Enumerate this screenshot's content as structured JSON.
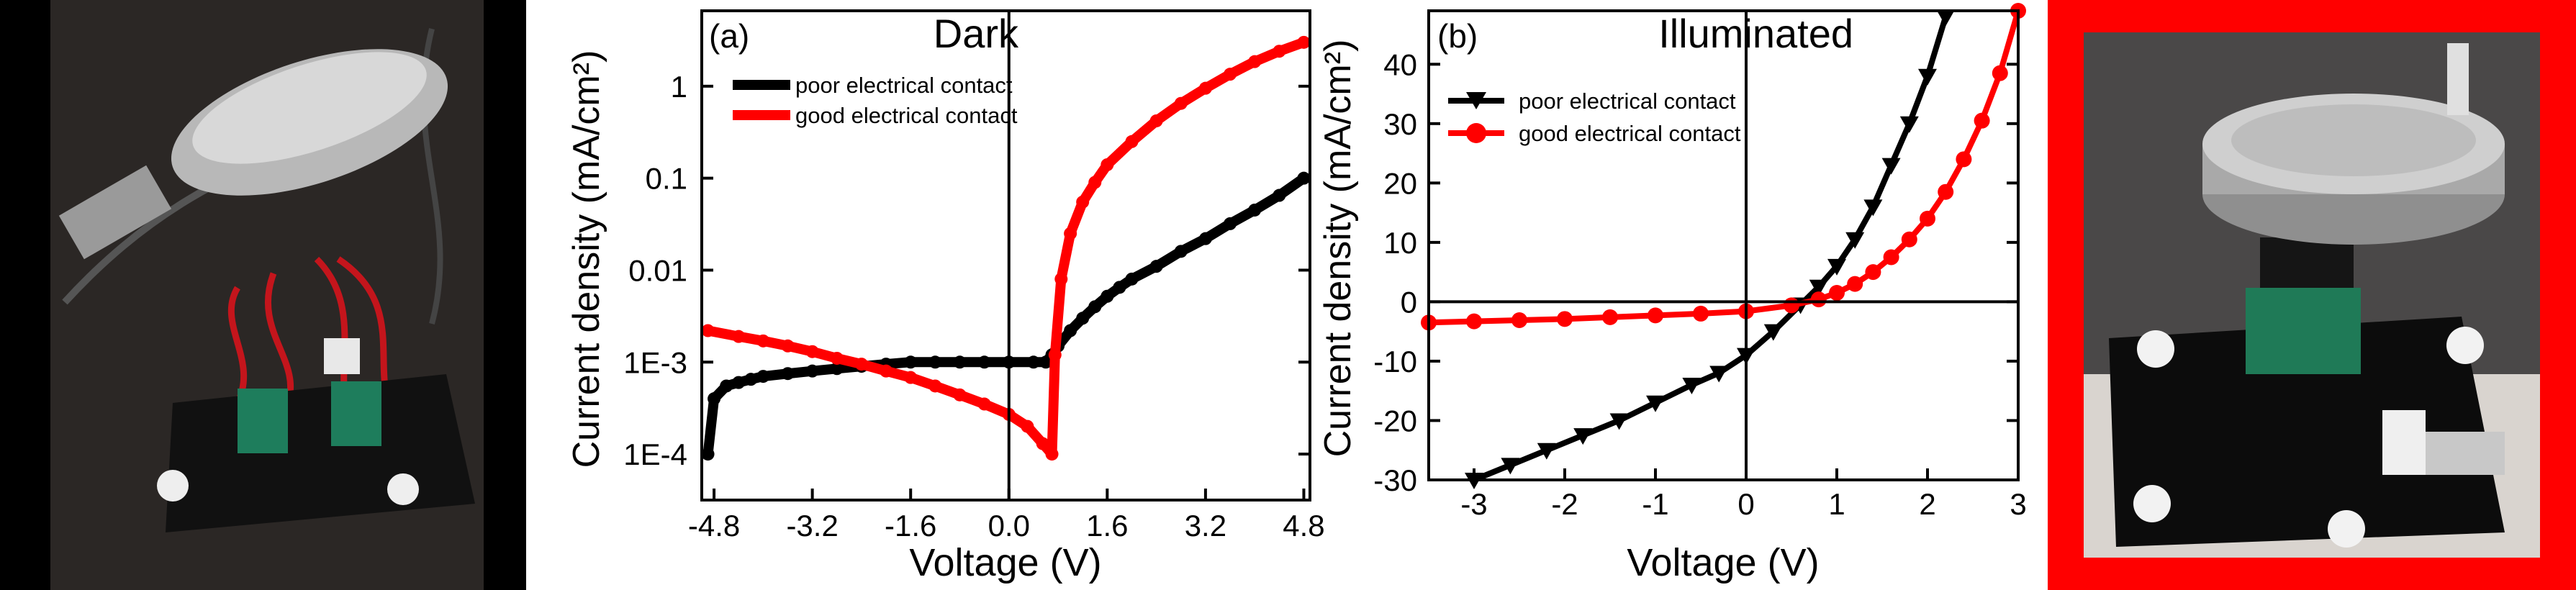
{
  "figure": {
    "left_photo": {
      "icon": "circuit-board-test-fixture-photo",
      "frame_color": "#000000"
    },
    "right_photo": {
      "icon": "aluminum-lid-test-fixture-photo",
      "frame_color": "#ff0000"
    }
  },
  "colors": {
    "poor": "#000000",
    "good": "#ff0000",
    "axis": "#000000"
  },
  "chart_data": [
    {
      "type": "line",
      "panel_label": "(a)",
      "title": "Dark",
      "xlabel": "Voltage (V)",
      "ylabel": "Current density (mA/cm²)",
      "xlim": [
        -5.0,
        4.9
      ],
      "ylim_log10": [
        -4.5,
        0.82
      ],
      "yscale": "log",
      "xticks": [
        -4.8,
        -3.2,
        -1.6,
        0.0,
        1.6,
        3.2,
        4.8
      ],
      "xtick_labels": [
        "-4.8",
        "-3.2",
        "-1.6",
        "0.0",
        "1.6",
        "3.2",
        "4.8"
      ],
      "yticks_log10": [
        -4,
        -3,
        -2,
        -1,
        0
      ],
      "ytick_labels": [
        "1E-4",
        "1E-3",
        "0.01",
        "0.1",
        "1"
      ],
      "legend": [
        "poor electrical contact",
        "good electrical contact"
      ],
      "legend_position": "top-left",
      "series": [
        {
          "name": "poor electrical contact",
          "color": "#000000",
          "marker": "circle",
          "x": [
            -4.9,
            -4.8,
            -4.6,
            -4.4,
            -4.2,
            -4.0,
            -3.6,
            -3.2,
            -2.8,
            -2.4,
            -2.0,
            -1.6,
            -1.2,
            -0.8,
            -0.4,
            0.0,
            0.4,
            0.6,
            0.7,
            0.8,
            1.0,
            1.2,
            1.4,
            1.6,
            1.8,
            2.0,
            2.4,
            2.8,
            3.2,
            3.6,
            4.0,
            4.4,
            4.8
          ],
          "y": [
            0.0001,
            0.0004,
            0.00055,
            0.0006,
            0.00065,
            0.0007,
            0.00075,
            0.0008,
            0.00085,
            0.0009,
            0.00095,
            0.001,
            0.001,
            0.001,
            0.001,
            0.001,
            0.001,
            0.001,
            0.0012,
            0.0015,
            0.0022,
            0.003,
            0.004,
            0.0052,
            0.0065,
            0.008,
            0.011,
            0.016,
            0.022,
            0.032,
            0.045,
            0.065,
            0.1
          ]
        },
        {
          "name": "good electrical contact",
          "color": "#ff0000",
          "marker": "circle",
          "x": [
            -4.9,
            -4.4,
            -4.0,
            -3.6,
            -3.2,
            -2.8,
            -2.4,
            -2.0,
            -1.6,
            -1.2,
            -0.8,
            -0.4,
            0.0,
            0.3,
            0.55,
            0.7,
            0.75,
            0.85,
            1.0,
            1.2,
            1.4,
            1.6,
            2.0,
            2.4,
            2.8,
            3.2,
            3.6,
            4.0,
            4.4,
            4.8
          ],
          "y": [
            0.0022,
            0.0019,
            0.0017,
            0.0015,
            0.0013,
            0.0011,
            0.00095,
            0.0008,
            0.00068,
            0.00055,
            0.00044,
            0.00035,
            0.00027,
            0.0002,
            0.00013,
            0.0001,
            0.0012,
            0.008,
            0.025,
            0.055,
            0.09,
            0.14,
            0.25,
            0.42,
            0.65,
            0.95,
            1.35,
            1.85,
            2.4,
            3.0
          ]
        }
      ]
    },
    {
      "type": "line",
      "panel_label": "(b)",
      "title": "Illuminated",
      "xlabel": "Voltage (V)",
      "ylabel": "Current density (mA/cm²)",
      "xlim": [
        -3.5,
        3.0
      ],
      "ylim": [
        -30,
        49
      ],
      "xticks": [
        -3,
        -2,
        -1,
        0,
        1,
        2,
        3
      ],
      "xtick_labels": [
        "-3",
        "-2",
        "-1",
        "0",
        "1",
        "2",
        "3"
      ],
      "yticks": [
        -30,
        -20,
        -10,
        0,
        10,
        20,
        30,
        40
      ],
      "ytick_labels": [
        "-30",
        "-20",
        "-10",
        "0",
        "10",
        "20",
        "30",
        "40"
      ],
      "legend": [
        "poor electrical contact",
        "good electrical contact"
      ],
      "legend_position": "top-left",
      "series": [
        {
          "name": "poor electrical contact",
          "color": "#000000",
          "marker": "triangle-down",
          "x": [
            -3.0,
            -2.6,
            -2.2,
            -1.8,
            -1.4,
            -1.0,
            -0.6,
            -0.3,
            0.0,
            0.3,
            0.6,
            0.8,
            1.0,
            1.2,
            1.4,
            1.6,
            1.8,
            2.0,
            2.2
          ],
          "y": [
            -30,
            -27.5,
            -25,
            -22.5,
            -20,
            -17,
            -14,
            -12,
            -9,
            -5,
            -0.5,
            2.5,
            6,
            10.5,
            16,
            23,
            30,
            38,
            48
          ]
        },
        {
          "name": "good electrical contact",
          "color": "#ff0000",
          "marker": "circle",
          "x": [
            -3.5,
            -3.0,
            -2.5,
            -2.0,
            -1.5,
            -1.0,
            -0.5,
            0.0,
            0.5,
            0.8,
            1.0,
            1.2,
            1.4,
            1.6,
            1.8,
            2.0,
            2.2,
            2.4,
            2.6,
            2.8,
            3.0
          ],
          "y": [
            -3.5,
            -3.3,
            -3.1,
            -2.9,
            -2.6,
            -2.3,
            -2.0,
            -1.6,
            -0.6,
            0.4,
            1.5,
            3,
            5,
            7.5,
            10.5,
            14,
            18.5,
            24,
            30.5,
            38.5,
            49
          ]
        }
      ]
    }
  ]
}
